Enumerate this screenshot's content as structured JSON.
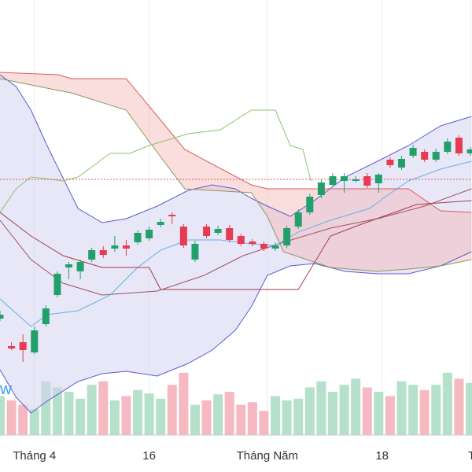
{
  "chart_data": {
    "type": "candlestick",
    "x": [
      0,
      1,
      2,
      3,
      4,
      5,
      6,
      7,
      8,
      9,
      10,
      11,
      12,
      13,
      14,
      15,
      16,
      17,
      18,
      19,
      20,
      21,
      22,
      23,
      24,
      25,
      26,
      27,
      28,
      29,
      30,
      31,
      32,
      33,
      34,
      35,
      36,
      37,
      38,
      39,
      40,
      41
    ],
    "open": [
      29,
      22,
      23,
      20.4,
      27.6,
      35,
      42,
      41,
      44,
      46.4,
      46.8,
      47.6,
      48.4,
      49.4,
      52.8,
      55.4,
      52.4,
      44,
      52.4,
      50.8,
      52,
      50,
      48.6,
      48,
      46.8,
      47.6,
      52.4,
      56,
      60.4,
      63,
      64,
      64,
      65.2,
      63.4,
      69.4,
      67.4,
      70.4,
      71.4,
      69.4,
      71.4,
      75,
      71
    ],
    "close": [
      30,
      21.4,
      21,
      26,
      31.6,
      40.4,
      42.8,
      43.4,
      46.4,
      45.2,
      47.6,
      46.8,
      50.8,
      51.6,
      53.6,
      55,
      47.6,
      48,
      50,
      51.8,
      49,
      48,
      48,
      46.8,
      47.6,
      52,
      56,
      60,
      63.6,
      65.2,
      65.2,
      64.4,
      62.8,
      65.6,
      68,
      69.6,
      72.4,
      69.4,
      71.4,
      74,
      71,
      72
    ],
    "high": [
      31,
      23,
      25,
      27,
      32.4,
      41,
      43.4,
      44,
      47,
      47.4,
      50,
      49,
      51.4,
      52.4,
      54.4,
      56,
      53,
      48.8,
      53,
      52.6,
      52.8,
      50.6,
      49.2,
      48.6,
      48.4,
      52.6,
      56.8,
      60.8,
      64.4,
      66,
      66,
      65.2,
      66,
      66,
      70,
      70.4,
      73.2,
      72,
      72.2,
      74.8,
      75.6,
      72.6
    ],
    "low": [
      28.4,
      21,
      18,
      20,
      27,
      34.4,
      39,
      39,
      43.4,
      44.4,
      46,
      45,
      47.8,
      48.8,
      52.2,
      53,
      47,
      43.4,
      49.4,
      50.2,
      48.4,
      47.4,
      47.4,
      46.2,
      46.2,
      47,
      51.8,
      55.4,
      59.6,
      62.4,
      61,
      63.6,
      62.2,
      61,
      67.4,
      66.8,
      69.8,
      68.8,
      68.8,
      70.8,
      70.4,
      70.4
    ],
    "volume": [
      45,
      40,
      35,
      30,
      62,
      55,
      50,
      42,
      58,
      62,
      40,
      45,
      52,
      48,
      42,
      58,
      72,
      35,
      40,
      47,
      50,
      35,
      38,
      28,
      45,
      40,
      42,
      55,
      62,
      50,
      58,
      65,
      55,
      50,
      45,
      62,
      58,
      52,
      58,
      72,
      65,
      60
    ],
    "up_color": "#22a06b",
    "down_color": "#e63b50",
    "up_volume_color": "#b5e0c9",
    "down_volume_color": "#f6b9c1",
    "xlim": [
      0,
      41
    ],
    "ylim": [
      0,
      110
    ],
    "y2lim": [
      0,
      100
    ],
    "xticks": [
      {
        "value": 3,
        "label": "Tháng 4"
      },
      {
        "value": 13,
        "label": "16"
      },
      {
        "value": 23.3,
        "label": "Tháng Năm"
      },
      {
        "value": 33.3,
        "label": "18"
      },
      {
        "value": 41,
        "label": "T"
      }
    ],
    "grid": true,
    "price_line": {
      "value": 64.4,
      "color": "#e05a5a"
    },
    "watermark": "W",
    "bands": {
      "fill": "#d4d4f0",
      "upper": {
        "color": "#5b5bd6",
        "x": [
          0,
          1.4,
          2.7,
          4.1,
          6.8,
          8.9,
          11,
          13.7,
          16.4,
          18.5,
          20.5,
          21.9,
          23.3,
          25.3,
          27.4,
          30.1,
          32.9,
          35.6,
          38.4,
          41.1
        ],
        "values": [
          91,
          88,
          82,
          73,
          57,
          53.4,
          54.4,
          57.6,
          61.6,
          63,
          62,
          59.6,
          57.6,
          55,
          59,
          65,
          69,
          73,
          78,
          80.4
        ]
      },
      "lower": {
        "color": "#5b5bd6",
        "x": [
          0,
          1.4,
          2.7,
          4.1,
          6.8,
          8.9,
          11,
          13.7,
          16.4,
          18.5,
          20.5,
          21.9,
          23.3,
          25.3,
          27.4,
          30.1,
          32.9,
          35.6,
          38.4,
          41.1
        ],
        "values": [
          16,
          9,
          5,
          8,
          13,
          15,
          15.6,
          14.4,
          17.6,
          21,
          26,
          32,
          40,
          42.4,
          43,
          41,
          40.4,
          40.4,
          42.4,
          46
        ]
      }
    },
    "cloud": {
      "fill": "#f5b3b3",
      "span_a": {
        "color": "#e05a5a",
        "x": [
          0,
          5.1,
          6.2,
          11,
          13,
          16.1,
          21.9,
          23.3,
          24.7,
          28.8,
          32.9,
          35.6,
          38.4,
          41.1
        ],
        "values": [
          91.6,
          91,
          90,
          90,
          83,
          72,
          63,
          62,
          62,
          62,
          62,
          62,
          56.4,
          56
        ]
      },
      "span_b": {
        "color": "#8a9a5a",
        "x": [
          0,
          5.1,
          6.2,
          11,
          13,
          16.1,
          21.9,
          23.3,
          24.7,
          28.8,
          32.9,
          35.6,
          38.4,
          41.1
        ],
        "values": [
          90,
          87,
          86.4,
          82,
          74,
          62,
          61,
          55,
          46,
          42,
          41,
          41.6,
          42.4,
          44
        ]
      }
    },
    "lines": [
      {
        "color": "#a0526a",
        "x": [
          0,
          2.7,
          5.5,
          8.9,
          13.7,
          17.8,
          21.2,
          24.7,
          28.8,
          32.9,
          37,
          41.1
        ],
        "values": [
          54,
          44,
          38,
          35,
          36,
          40,
          45,
          48.4,
          52,
          54.4,
          57.6,
          62
        ]
      },
      {
        "color": "#6aaee8",
        "x": [
          0,
          2.7,
          4.1,
          6.8,
          9.6,
          12,
          14,
          16.4,
          19.2,
          21.9,
          24,
          26,
          28.8,
          32.2,
          33.6,
          35.6,
          38.4,
          41.1
        ],
        "values": [
          34,
          27,
          30,
          31,
          35,
          42,
          46.4,
          49,
          49,
          48,
          47.6,
          51,
          54,
          57,
          60,
          64,
          67,
          69
        ]
      },
      {
        "color": "#a33b4a",
        "x": [
          0,
          2.7,
          5.5,
          8.9,
          13,
          14,
          22.6,
          26,
          28.8,
          31.5,
          36.3,
          41.1
        ],
        "values": [
          56,
          50,
          45,
          42,
          42,
          36.4,
          36.4,
          36.4,
          50,
          53,
          58,
          59
        ]
      },
      {
        "color": "#8cc36a",
        "x": [
          0,
          1.4,
          2.7,
          5.5,
          6.8,
          9.6,
          11.3,
          13,
          16.4,
          19.2,
          21.9,
          24,
          25.3,
          26.4,
          27.1
        ],
        "values": [
          56,
          62,
          65,
          64,
          65,
          71,
          71,
          73,
          76,
          77,
          82,
          82,
          73,
          72,
          64
        ]
      }
    ]
  }
}
